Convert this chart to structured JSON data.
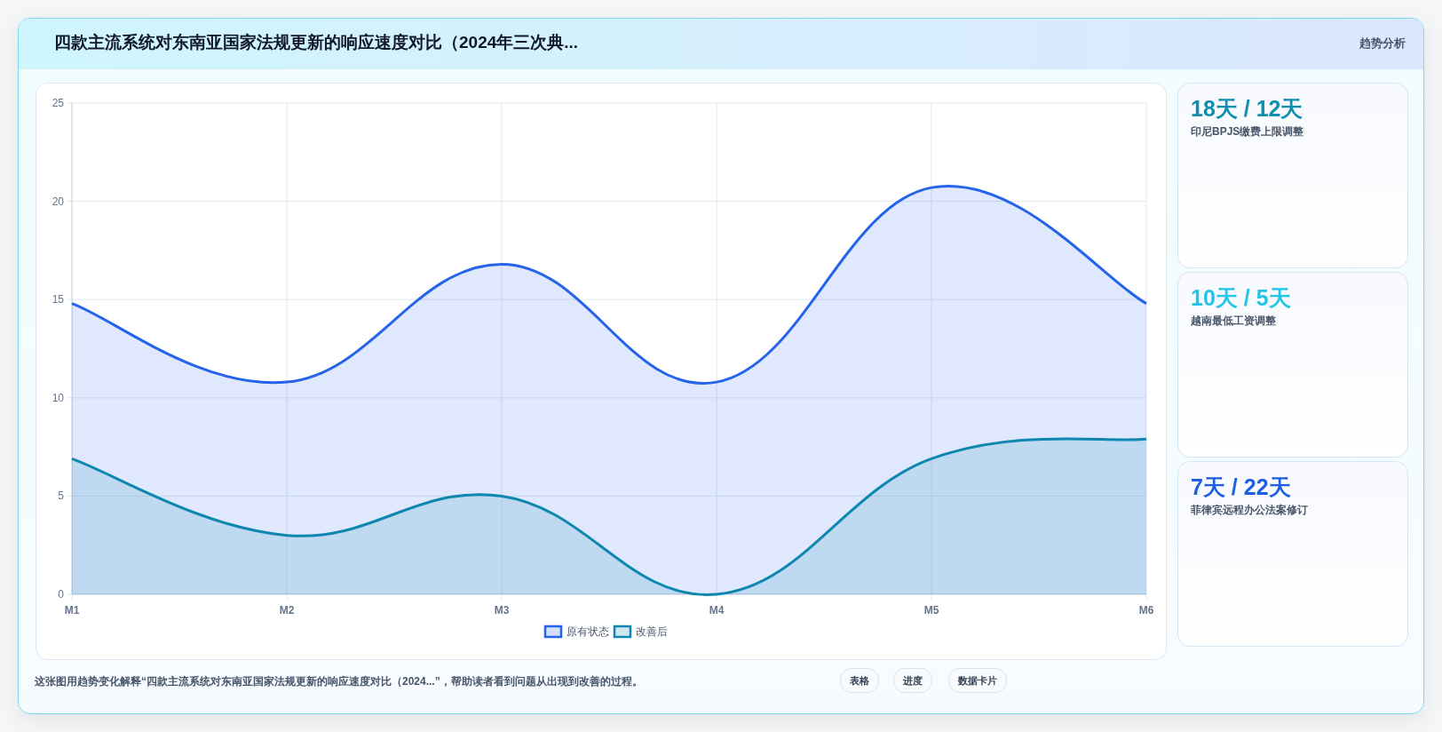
{
  "chart_data": [
    {
      "type": "area",
      "title": "四款主流系统对东南亚国家法规更新的响应速度对比（2024年三次典...",
      "categories": [
        "M1",
        "M2",
        "M3",
        "M4",
        "M5",
        "M6"
      ],
      "series": [
        {
          "name": "原有状态",
          "color": "#2563eb",
          "values": [
            14.8,
            10.8,
            16.8,
            10.8,
            20.7,
            14.8
          ]
        },
        {
          "name": "改善后",
          "color": "#0e87b0",
          "values": [
            6.9,
            3.0,
            5.0,
            0,
            6.9,
            7.9
          ]
        }
      ],
      "ylim": [
        0,
        25
      ],
      "yticks": [
        0,
        5,
        10,
        15,
        20,
        25
      ],
      "grid": true,
      "legend": "bottom",
      "annotations": [
        "趋势分析",
        "这张图用趋势变化解释“四款主流系统对东南亚国家法规更新的响应速度对比（2024...”，帮助读者看到问题从出现到改善的过程。",
        "表格",
        "进度",
        "数据卡片"
      ]
    },
    {
      "type": "other",
      "title": "18天 / 12天",
      "subtitle": "印尼BPJS缴费上限调整"
    },
    {
      "type": "other",
      "title": "10天 / 5天",
      "subtitle": "越南最低工资调整"
    },
    {
      "type": "other",
      "title": "7天 / 22天",
      "subtitle": "菲律宾远程办公法案修订"
    }
  ]
}
